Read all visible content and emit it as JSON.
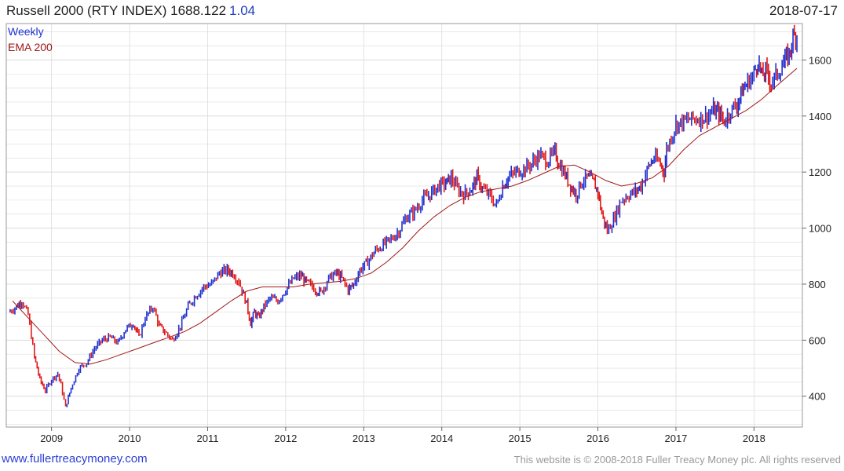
{
  "header": {
    "title": "Russell 2000 (RTY INDEX) 1688.122",
    "change": "1.04",
    "date": "2018-07-17"
  },
  "footer": {
    "site": "www.fullertreacymoney.com",
    "copyright": "This website is © 2008-2018 Fuller Treacy Money plc. All rights reserved"
  },
  "colors": {
    "up": "#1f2fd0",
    "down": "#e01818",
    "ema": "#a01818",
    "grid": "#dcdcdc"
  },
  "chart_data": {
    "type": "line",
    "legend": [
      "Weekly",
      "EMA 200"
    ],
    "legend_placement": "top-left",
    "y_ticks": [
      400,
      600,
      800,
      1000,
      1200,
      1400,
      1600
    ],
    "x_ticks": [
      "2009",
      "2010",
      "2011",
      "2012",
      "2013",
      "2014",
      "2015",
      "2016",
      "2017",
      "2018"
    ],
    "ylim": [
      290,
      1730
    ],
    "xlim": [
      2008.42,
      2018.62
    ],
    "y_scale": "linear",
    "grid": true,
    "series": [
      {
        "name": "Weekly",
        "style": "ohlc-bars",
        "x": [
          2008.45,
          2008.55,
          2008.62,
          2008.7,
          2008.78,
          2008.85,
          2008.92,
          2009.0,
          2009.08,
          2009.12,
          2009.18,
          2009.25,
          2009.35,
          2009.45,
          2009.55,
          2009.65,
          2009.75,
          2009.85,
          2009.95,
          2010.05,
          2010.12,
          2010.2,
          2010.3,
          2010.38,
          2010.45,
          2010.55,
          2010.65,
          2010.75,
          2010.85,
          2010.95,
          2011.05,
          2011.15,
          2011.25,
          2011.32,
          2011.4,
          2011.5,
          2011.55,
          2011.6,
          2011.65,
          2011.72,
          2011.8,
          2011.9,
          2012.0,
          2012.1,
          2012.2,
          2012.25,
          2012.3,
          2012.38,
          2012.45,
          2012.55,
          2012.65,
          2012.72,
          2012.8,
          2012.87,
          2012.95,
          2013.05,
          2013.15,
          2013.25,
          2013.35,
          2013.45,
          2013.55,
          2013.65,
          2013.75,
          2013.85,
          2013.95,
          2014.05,
          2014.12,
          2014.2,
          2014.28,
          2014.38,
          2014.45,
          2014.52,
          2014.6,
          2014.7,
          2014.78,
          2014.85,
          2014.95,
          2015.05,
          2015.15,
          2015.25,
          2015.35,
          2015.45,
          2015.5,
          2015.58,
          2015.65,
          2015.72,
          2015.8,
          2015.88,
          2015.95,
          2016.0,
          2016.05,
          2016.12,
          2016.2,
          2016.3,
          2016.4,
          2016.48,
          2016.55,
          2016.65,
          2016.72,
          2016.8,
          2016.85,
          2016.88,
          2016.92,
          2017.0,
          2017.1,
          2017.2,
          2017.3,
          2017.4,
          2017.48,
          2017.55,
          2017.62,
          2017.7,
          2017.78,
          2017.85,
          2017.92,
          2018.0,
          2018.05,
          2018.1,
          2018.15,
          2018.22,
          2018.3,
          2018.38,
          2018.45,
          2018.5,
          2018.55
        ],
        "values": [
          700,
          720,
          740,
          690,
          540,
          460,
          420,
          460,
          480,
          440,
          360,
          430,
          500,
          520,
          570,
          600,
          610,
          590,
          640,
          660,
          610,
          680,
          720,
          650,
          630,
          600,
          650,
          720,
          760,
          790,
          800,
          840,
          850,
          840,
          810,
          730,
          660,
          700,
          680,
          720,
          750,
          740,
          780,
          820,
          830,
          810,
          800,
          780,
          770,
          820,
          840,
          820,
          780,
          800,
          850,
          880,
          920,
          940,
          960,
          990,
          1040,
          1060,
          1100,
          1120,
          1150,
          1160,
          1180,
          1140,
          1120,
          1140,
          1180,
          1140,
          1120,
          1080,
          1150,
          1180,
          1200,
          1210,
          1230,
          1260,
          1240,
          1270,
          1230,
          1190,
          1150,
          1120,
          1170,
          1180,
          1160,
          1130,
          1050,
          990,
          1030,
          1100,
          1120,
          1130,
          1150,
          1220,
          1250,
          1230,
          1200,
          1280,
          1310,
          1370,
          1380,
          1390,
          1390,
          1400,
          1420,
          1410,
          1380,
          1420,
          1440,
          1490,
          1520,
          1550,
          1600,
          1540,
          1560,
          1520,
          1550,
          1590,
          1620,
          1680,
          1688
        ]
      },
      {
        "name": "EMA 200",
        "style": "line",
        "x": [
          2008.5,
          2008.7,
          2008.9,
          2009.1,
          2009.3,
          2009.5,
          2009.7,
          2009.9,
          2010.1,
          2010.3,
          2010.5,
          2010.7,
          2010.9,
          2011.1,
          2011.3,
          2011.5,
          2011.7,
          2011.9,
          2012.1,
          2012.3,
          2012.5,
          2012.7,
          2012.9,
          2013.1,
          2013.3,
          2013.5,
          2013.7,
          2013.9,
          2014.1,
          2014.3,
          2014.5,
          2014.7,
          2014.9,
          2015.1,
          2015.3,
          2015.5,
          2015.7,
          2015.9,
          2016.1,
          2016.3,
          2016.5,
          2016.7,
          2016.9,
          2017.1,
          2017.3,
          2017.5,
          2017.7,
          2017.9,
          2018.1,
          2018.3,
          2018.55
        ],
        "values": [
          740,
          680,
          620,
          560,
          520,
          515,
          530,
          550,
          570,
          590,
          610,
          630,
          660,
          700,
          740,
          775,
          790,
          790,
          790,
          800,
          805,
          810,
          820,
          840,
          880,
          930,
          990,
          1040,
          1080,
          1110,
          1130,
          1140,
          1150,
          1170,
          1195,
          1220,
          1225,
          1200,
          1170,
          1150,
          1160,
          1180,
          1220,
          1280,
          1330,
          1360,
          1390,
          1420,
          1460,
          1510,
          1570
        ]
      }
    ]
  }
}
